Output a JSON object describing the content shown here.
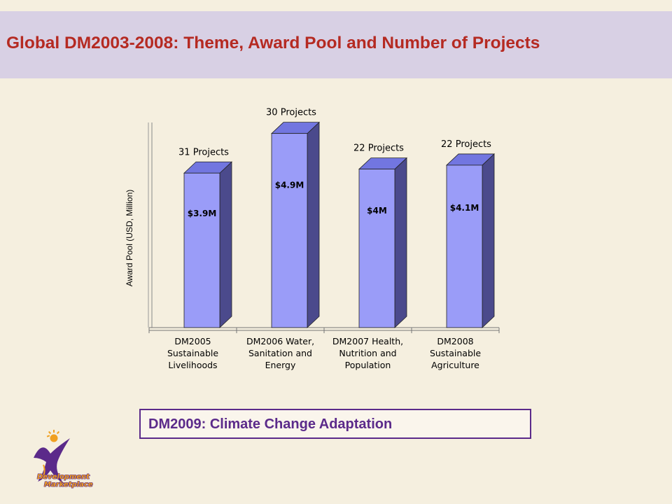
{
  "header": {
    "title": "Global DM2003-2008:  Theme, Award Pool and Number of Projects",
    "background_color": "#d8d0e4",
    "title_color": "#b52a22"
  },
  "chart_data": {
    "type": "bar",
    "title": "",
    "ylabel": "Award Pool (USD, Million)",
    "xlabel": "",
    "ylim": [
      0,
      6
    ],
    "grid": false,
    "legend": "none",
    "style": "3d",
    "bar_color": "#9999ff",
    "categories": [
      [
        "DM2005",
        "Sustainable",
        "Livelihoods"
      ],
      [
        "DM2006 Water,",
        "Sanitation and",
        "Energy"
      ],
      [
        "DM2007 Health,",
        "Nutrition and",
        "Population"
      ],
      [
        "DM2008",
        "Sustainable",
        "Agriculture"
      ]
    ],
    "values": [
      3.9,
      4.9,
      4.0,
      4.1
    ],
    "value_labels": [
      "$3.9M",
      "$4.9M",
      "$4M",
      "$4.1M"
    ],
    "annotations": [
      "31 Projects",
      "30 Projects",
      "22 Projects",
      "22 Projects"
    ]
  },
  "callout": {
    "text": "DM2009:  Climate Change Adaptation",
    "color": "#5b2a8a"
  },
  "logo": {
    "line1": "Development",
    "line2": "Marketplace"
  }
}
